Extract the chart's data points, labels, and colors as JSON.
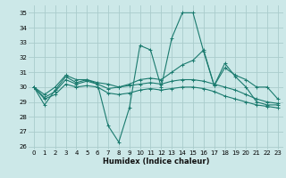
{
  "xlabel": "Humidex (Indice chaleur)",
  "bg_color": "#cce8e8",
  "grid_color": "#aacccc",
  "line_color": "#1a7a6e",
  "xlim": [
    -0.5,
    23.5
  ],
  "ylim": [
    25.8,
    35.5
  ],
  "yticks": [
    26,
    27,
    28,
    29,
    30,
    31,
    32,
    33,
    34,
    35
  ],
  "xticks": [
    0,
    1,
    2,
    3,
    4,
    5,
    6,
    7,
    8,
    9,
    10,
    11,
    12,
    13,
    14,
    15,
    16,
    17,
    18,
    19,
    20,
    21,
    22,
    23
  ],
  "series": [
    [
      30.0,
      28.8,
      29.8,
      30.7,
      30.3,
      30.5,
      30.2,
      27.4,
      26.3,
      28.6,
      32.8,
      32.5,
      30.0,
      33.3,
      35.0,
      35.0,
      32.4,
      30.1,
      31.6,
      30.7,
      30.0,
      29.0,
      28.8,
      28.8
    ],
    [
      30.0,
      29.5,
      30.0,
      30.8,
      30.5,
      30.5,
      30.3,
      30.2,
      30.0,
      30.2,
      30.5,
      30.6,
      30.5,
      31.0,
      31.5,
      31.8,
      32.5,
      30.1,
      31.3,
      30.8,
      30.5,
      30.0,
      30.0,
      29.2
    ],
    [
      30.0,
      29.3,
      29.7,
      30.5,
      30.2,
      30.4,
      30.2,
      29.9,
      30.0,
      30.1,
      30.2,
      30.3,
      30.2,
      30.4,
      30.5,
      30.5,
      30.4,
      30.2,
      30.0,
      29.8,
      29.5,
      29.2,
      29.0,
      28.9
    ],
    [
      30.0,
      29.2,
      29.5,
      30.2,
      30.0,
      30.1,
      30.0,
      29.6,
      29.5,
      29.6,
      29.8,
      29.9,
      29.8,
      29.9,
      30.0,
      30.0,
      29.9,
      29.7,
      29.4,
      29.2,
      29.0,
      28.8,
      28.7,
      28.6
    ]
  ]
}
